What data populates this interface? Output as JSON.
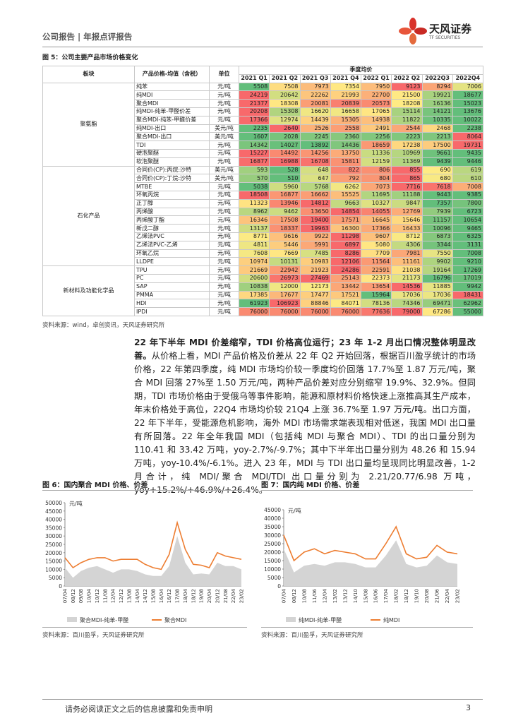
{
  "header": {
    "left": "公司报告 | 年报点评报告",
    "brand": "天风证券",
    "brand_en": "TF SECURITIES"
  },
  "figure5": {
    "title": "图 5：公司主要产品市场价格变化",
    "source": "资料来源：wind，卓创资讯，天风证券研究所"
  },
  "table": {
    "headers": [
      "板块",
      "产品价格-均值（含税）",
      "单位"
    ],
    "group_header": "季度均价",
    "quarters": [
      "2021 Q1",
      "2021 Q2",
      "2021 Q3",
      "2021 Q4",
      "2022 Q1",
      "2022 Q2",
      "2022Q3",
      "2022Q4"
    ],
    "segments": [
      {
        "name": "聚氨酯",
        "rows": [
          {
            "product": "纯苯",
            "unit": "元/吨",
            "values": [
              5508,
              7508,
              7973,
              7354,
              7950,
              9123,
              8294,
              7006
            ]
          },
          {
            "product": "纯MDI",
            "unit": "元/吨",
            "values": [
              24219,
              20642,
              22262,
              21993,
              22700,
              21500,
              19921,
              18677
            ]
          },
          {
            "product": "聚合MDI",
            "unit": "元/吨",
            "values": [
              21377,
              18308,
              20081,
              20839,
              20573,
              18208,
              16136,
              15023
            ]
          },
          {
            "product": "纯MDI-纯苯-甲醛价差",
            "unit": "元/吨",
            "values": [
              20208,
              15308,
              16620,
              16658,
              17065,
              15114,
              14121,
              13676
            ]
          },
          {
            "product": "聚合MDI-纯苯-甲醛价差",
            "unit": "元/吨",
            "values": [
              17366,
              12974,
              14439,
              15305,
              14938,
              11822,
              10335,
              10022
            ]
          },
          {
            "product": "纯MDI-出口",
            "unit": "美元/吨",
            "values": [
              2235,
              2640,
              2526,
              2558,
              2491,
              2544,
              2468,
              2238
            ]
          },
          {
            "product": "聚合MDI-出口",
            "unit": "美元/吨",
            "values": [
              1607,
              2028,
              2245,
              2360,
              2256,
              2223,
              2213,
              8064
            ]
          },
          {
            "product": "TDI",
            "unit": "元/吨",
            "values": [
              14342,
              14027,
              13892,
              14436,
              18659,
              17238,
              17500,
              19731
            ]
          },
          {
            "product": "硬泡聚醚",
            "unit": "元/吨",
            "values": [
              15227,
              14492,
              14256,
              13750,
              11336,
              10969,
              9661,
              9435
            ]
          },
          {
            "product": "软泡聚醚",
            "unit": "元/吨",
            "values": [
              16877,
              16988,
              16708,
              15811,
              12159,
              11369,
              9439,
              9446
            ]
          }
        ]
      },
      {
        "name": "石化产品",
        "rows": [
          {
            "product": "合同价(CP):丙烷:沙特",
            "unit": "美元/吨",
            "values": [
              593,
              528,
              648,
              822,
              806,
              855,
              690,
              619
            ]
          },
          {
            "product": "合同价(CP):丁烷:沙特",
            "unit": "美元/吨",
            "values": [
              570,
              510,
              647,
              792,
              804,
              865,
              680,
              610
            ]
          },
          {
            "product": "MTBE",
            "unit": "元/吨",
            "values": [
              5038,
              5960,
              5768,
              6262,
              7073,
              7716,
              7618,
              7008
            ]
          },
          {
            "product": "环氧丙烷",
            "unit": "元/吨",
            "values": [
              18508,
              16877,
              16662,
              15525,
              11695,
              11188,
              9443,
              9385
            ]
          },
          {
            "product": "正丁醇",
            "unit": "元/吨",
            "values": [
              11323,
              13946,
              14812,
              9663,
              10327,
              9847,
              7357,
              7800
            ]
          },
          {
            "product": "丙烯酸",
            "unit": "元/吨",
            "values": [
              8962,
              9462,
              13650,
              14854,
              14055,
              12769,
              7939,
              6723
            ]
          },
          {
            "product": "丙烯酸丁酯",
            "unit": "元/吨",
            "values": [
              16346,
              17508,
              19400,
              17571,
              16645,
              15646,
              11157,
              10654
            ]
          },
          {
            "product": "新戊二醇",
            "unit": "元/吨",
            "values": [
              13137,
              18337,
              19963,
              16300,
              17366,
              16433,
              10096,
              9465
            ]
          },
          {
            "product": "乙烯法PVC",
            "unit": "元/吨",
            "values": [
              8771,
              9616,
              9922,
              11298,
              9607,
              8712,
              6873,
              6325
            ]
          },
          {
            "product": "乙烯法PVC-乙烯",
            "unit": "元/吨",
            "values": [
              4811,
              5446,
              5991,
              6897,
              5080,
              4306,
              3344,
              3131
            ]
          },
          {
            "product": "环氧乙烷",
            "unit": "元/吨",
            "values": [
              7608,
              7669,
              7485,
              8286,
              7709,
              7981,
              7550,
              7008
            ]
          },
          {
            "product": "LLDPE",
            "unit": "元/吨",
            "values": [
              10974,
              10131,
              10983,
              12106,
              11564,
              11161,
              9902,
              9210
            ]
          }
        ]
      },
      {
        "name": "新材料及功能化学品",
        "rows": [
          {
            "product": "TPU",
            "unit": "元/吨",
            "values": [
              21669,
              22942,
              21923,
              24286,
              22591,
              21038,
              19164,
              17269
            ]
          },
          {
            "product": "PC",
            "unit": "元/吨",
            "values": [
              20600,
              26973,
              27469,
              25143,
              22373,
              21173,
              16796,
              17019
            ]
          },
          {
            "product": "SAP",
            "unit": "元/吨",
            "values": [
              10838,
              12000,
              12173,
              13442,
              13654,
              14536,
              11885,
              9942
            ]
          },
          {
            "product": "PMMA",
            "unit": "元/吨",
            "values": [
              17385,
              17677,
              17477,
              17521,
              15964,
              17036,
              17036,
              18431
            ]
          },
          {
            "product": "HDI",
            "unit": "元/吨",
            "values": [
              61923,
              106923,
              88846,
              84071,
              78136,
              74346,
              69471,
              62962
            ]
          },
          {
            "product": "IPDI",
            "unit": "元/吨",
            "values": [
              76000,
              76000,
              76000,
              76000,
              77636,
              79000,
              67286,
              55000
            ]
          }
        ]
      }
    ]
  },
  "paragraph": {
    "lead": "22 年下半年 MDI 价差缩窄，TDI 价格高位运行；23 年 1-2 月出口情况整体明显改善。",
    "body": "从价格上看，MDI 产品价格及价差从 22 年 Q2 开始回落，根据百川盈孚统计的市场价格，22 年第四季度，纯 MDI 市场均价较一季度均价回落 17.7%至 1.87 万元/吨，聚合 MDI 回落 27%至 1.50 万元/吨，两种产品价差对应分别缩窄 19.9%、32.9%。但同期，TDI 市场价格由于受俄乌等事件影响，能源和原材料价格快速上涨推高其生产成本，年末价格处于高位，22Q4 市场均价较 21Q4 上涨 36.7%至 1.97 万元/吨。出口方面，22 年下半年，受能源危机影响，海外 MDI 市场需求端表现相对低迷，我国 MDI 出口量有所回落。22 年全年我国 MDI（包括纯 MDI 与聚合 MDI）、TDI 的出口量分别为 110.41 和 33.42 万吨，yoy-2.7%/-9.7%；其中下半年出口量分别为 48.26 和 15.94 万吨，yoy-10.4%/-6.1%。进入 23 年，MDI 与 TDI 出口量均呈现同比明显改善，1-2 月合计，纯 MDI/聚合 MDI/TDI 出口量分别为 2.21/20.77/6.98 万吨，yoy+15.2%/+46.9%/+26.4%。"
  },
  "chart_data": [
    {
      "type": "line",
      "title": "图 6：国内聚合 MDI 价格、价差",
      "unit": "元/吨",
      "source": "资料来源：百川盈孚，天风证券研究所",
      "categories": [
        "07/04",
        "08/12",
        "09/08",
        "10/04",
        "10/12",
        "11/08",
        "12/04",
        "12/12",
        "13/08",
        "14/04",
        "14/12",
        "15/08",
        "16/04",
        "16/12",
        "17/08",
        "18/04",
        "18/12",
        "19/08",
        "20/04",
        "20/12",
        "21/08",
        "22/04",
        "23/02"
      ],
      "ylim": [
        0,
        50000
      ],
      "yticks": [
        0,
        5000,
        10000,
        15000,
        20000,
        25000,
        30000,
        35000,
        40000,
        45000,
        50000
      ],
      "series": [
        {
          "name": "聚合MDI-纯苯-甲醛",
          "color": "#d4d4d4",
          "fill": true,
          "values": [
            11000,
            5000,
            9000,
            11000,
            12000,
            10000,
            8000,
            10000,
            10000,
            9000,
            7000,
            6000,
            6000,
            12000,
            30000,
            14000,
            7000,
            7500,
            7000,
            14000,
            12000,
            12000,
            10000
          ]
        },
        {
          "name": "聚合MDI",
          "color": "#ed7d31",
          "values": [
            17000,
            11000,
            14000,
            16000,
            17000,
            17000,
            15000,
            16000,
            16000,
            16000,
            13000,
            11000,
            10000,
            19000,
            38000,
            22000,
            13000,
            12500,
            11000,
            20000,
            18000,
            17000,
            16000
          ]
        }
      ]
    },
    {
      "type": "line",
      "title": "图 7：国内纯 MDI 价格、价差",
      "unit": "元/吨",
      "source": "资料来源：百川盈孚，天风证券研究所",
      "categories": [
        "07/04",
        "08/12",
        "10/08",
        "11/06",
        "12/04",
        "13/02",
        "13/12",
        "14/10",
        "15/08",
        "16/06",
        "17/04",
        "18/02",
        "18/12",
        "19/10",
        "20/08",
        "21/06",
        "22/04",
        "23/02"
      ],
      "ylim": [
        0,
        45000
      ],
      "yticks": [
        0,
        5000,
        10000,
        15000,
        20000,
        25000,
        30000,
        35000,
        40000,
        45000
      ],
      "series": [
        {
          "name": "纯MDI-纯苯-甲醛",
          "color": "#d4d4d4",
          "fill": true,
          "values": [
            22000,
            8000,
            12000,
            13000,
            12000,
            14000,
            14000,
            13000,
            11000,
            11000,
            18000,
            27000,
            13000,
            11000,
            12000,
            18000,
            14000,
            13000
          ]
        },
        {
          "name": "纯MDI",
          "color": "#ed7d31",
          "values": [
            30000,
            15000,
            20000,
            22000,
            19000,
            21000,
            20000,
            19000,
            16000,
            16000,
            25000,
            35000,
            19000,
            16000,
            17000,
            24000,
            20000,
            19000
          ]
        }
      ]
    }
  ],
  "footer": {
    "disclaimer": "请务必阅读正文之后的信息披露和免责申明",
    "page": "3"
  }
}
